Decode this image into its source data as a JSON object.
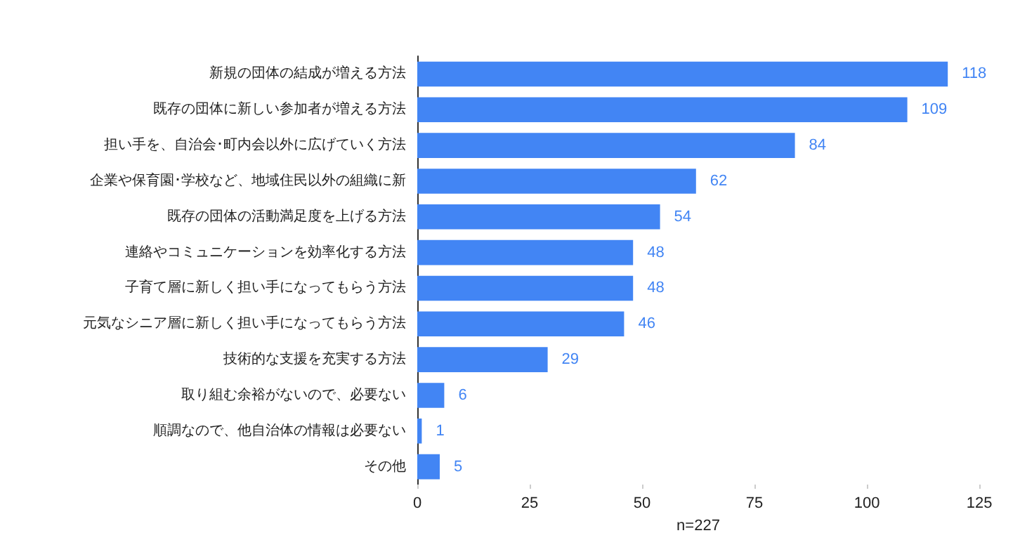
{
  "chart_data": {
    "type": "bar",
    "orientation": "horizontal",
    "xlabel": "n=227",
    "categories": [
      "新規の団体の結成が増える方法",
      "既存の団体に新しい参加者が増える方法",
      "担い手を、自治会･町内会以外に広げていく方法",
      "企業や保育園･学校など、地域住民以外の組織に新",
      "既存の団体の活動満足度を上げる方法",
      "連絡やコミュニケーションを効率化する方法",
      "子育て層に新しく担い手になってもらう方法",
      "元気なシニア層に新しく担い手になってもらう方法",
      "技術的な支援を充実する方法",
      "取り組む余裕がないので、必要ない",
      "順調なので、他自治体の情報は必要ない",
      "その他"
    ],
    "values": [
      118,
      109,
      84,
      62,
      54,
      48,
      48,
      46,
      29,
      6,
      1,
      5
    ],
    "color": "#4285f4",
    "data_labels": true,
    "grid": false,
    "xlim": [
      0,
      125
    ],
    "xticks": [
      0,
      25,
      50,
      75,
      100,
      125
    ]
  }
}
